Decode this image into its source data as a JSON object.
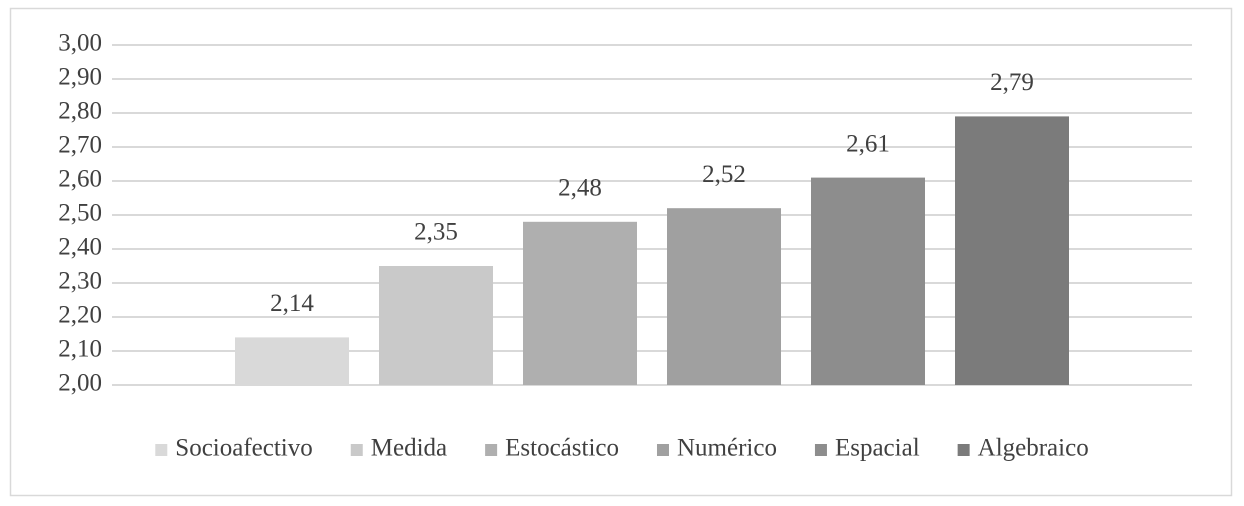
{
  "chart_data": {
    "type": "bar",
    "categories": [
      null
    ],
    "series": [
      {
        "name": "Socioafectivo",
        "color": "#d9d9d9",
        "values": [
          2.14
        ],
        "value_labels": [
          "2,14"
        ]
      },
      {
        "name": "Medida",
        "color": "#c9c9c9",
        "values": [
          2.35
        ],
        "value_labels": [
          "2,35"
        ]
      },
      {
        "name": "Estocástico",
        "color": "#afafaf",
        "values": [
          2.48
        ],
        "value_labels": [
          "2,48"
        ]
      },
      {
        "name": "Numérico",
        "color": "#a0a0a0",
        "values": [
          2.52
        ],
        "value_labels": [
          "2,52"
        ]
      },
      {
        "name": "Espacial",
        "color": "#8d8d8d",
        "values": [
          2.61
        ],
        "value_labels": [
          "2,61"
        ]
      },
      {
        "name": "Algebraico",
        "color": "#7b7b7b",
        "values": [
          2.79
        ],
        "value_labels": [
          "2,79"
        ]
      }
    ],
    "ylim": [
      2.0,
      3.0
    ],
    "yticks": [
      {
        "value": 2.0,
        "label": "2,00"
      },
      {
        "value": 2.1,
        "label": "2,10"
      },
      {
        "value": 2.2,
        "label": "2,20"
      },
      {
        "value": 2.3,
        "label": "2,30"
      },
      {
        "value": 2.4,
        "label": "2,40"
      },
      {
        "value": 2.5,
        "label": "2,50"
      },
      {
        "value": 2.6,
        "label": "2,60"
      },
      {
        "value": 2.7,
        "label": "2,70"
      },
      {
        "value": 2.8,
        "label": "2,80"
      },
      {
        "value": 2.9,
        "label": "2,90"
      },
      {
        "value": 3.0,
        "label": "3,00"
      }
    ],
    "grid": true,
    "legend": "bottom"
  }
}
